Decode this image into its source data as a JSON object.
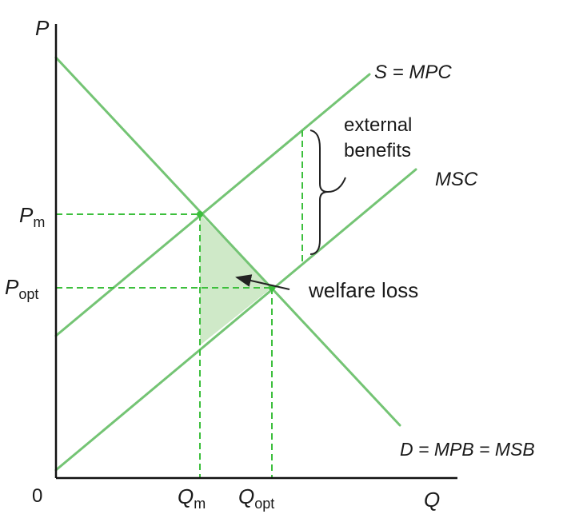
{
  "axes": {
    "y_label": "P",
    "x_label": "Q",
    "origin_label": "0"
  },
  "y_ticks": [
    {
      "main": "P",
      "sub": "m"
    },
    {
      "main": "P",
      "sub": "opt"
    }
  ],
  "x_ticks": [
    {
      "main": "Q",
      "sub": "m"
    },
    {
      "main": "Q",
      "sub": "opt"
    }
  ],
  "curves": {
    "supply_label": "S = MPC",
    "msc_label": "MSC",
    "demand_label": "D = MPB = MSB"
  },
  "annotations": {
    "external_line1": "external",
    "external_line2": "benefits",
    "welfare_loss": "welfare loss"
  },
  "colors": {
    "curve": "#74c474",
    "guide": "#3cbf3c",
    "shade": "#cfe9c8"
  }
}
